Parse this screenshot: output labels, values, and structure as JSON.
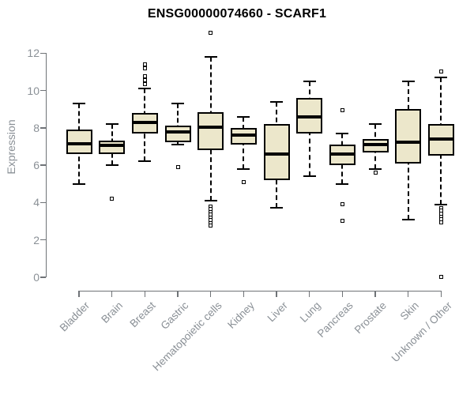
{
  "chart_data": {
    "type": "boxplot",
    "title": "ENSG00000074660 - SCARF1",
    "xlabel": "",
    "ylabel": "Expression",
    "ylim": [
      0,
      13.4
    ],
    "yticks": [
      0,
      2,
      4,
      6,
      8,
      10,
      12
    ],
    "grid": false,
    "legend": "none",
    "categories": [
      "Bladder",
      "Brain",
      "Breast",
      "Gastric",
      "Hematopoietic cells",
      "Kidney",
      "Liver",
      "Lung",
      "Pancreas",
      "Prostate",
      "Skin",
      "Unknown / Other"
    ],
    "boxes": [
      {
        "label": "Bladder",
        "low": 5.0,
        "q1": 6.6,
        "median": 7.15,
        "q3": 7.9,
        "high": 9.3,
        "outliers": []
      },
      {
        "label": "Brain",
        "low": 6.0,
        "q1": 6.6,
        "median": 7.05,
        "q3": 7.3,
        "high": 8.2,
        "outliers": [
          4.2
        ]
      },
      {
        "label": "Breast",
        "low": 6.2,
        "q1": 7.7,
        "median": 8.3,
        "q3": 8.8,
        "high": 10.1,
        "outliers": [
          11.4,
          11.2,
          10.75,
          10.55,
          10.35
        ]
      },
      {
        "label": "Gastric",
        "low": 7.1,
        "q1": 7.25,
        "median": 7.8,
        "q3": 8.1,
        "high": 9.3,
        "outliers": [
          5.9
        ]
      },
      {
        "label": "Hematopoietic cells",
        "low": 4.1,
        "q1": 6.8,
        "median": 8.05,
        "q3": 8.85,
        "high": 11.8,
        "outliers": [
          13.1,
          3.8,
          3.65,
          3.5,
          3.35,
          3.2,
          3.05,
          2.9,
          2.75
        ]
      },
      {
        "label": "Kidney",
        "low": 5.8,
        "q1": 7.1,
        "median": 7.6,
        "q3": 8.0,
        "high": 8.6,
        "outliers": [
          5.1
        ]
      },
      {
        "label": "Liver",
        "low": 3.7,
        "q1": 5.2,
        "median": 6.6,
        "q3": 8.2,
        "high": 9.4,
        "outliers": []
      },
      {
        "label": "Lung",
        "low": 5.4,
        "q1": 7.7,
        "median": 8.6,
        "q3": 9.6,
        "high": 10.5,
        "outliers": []
      },
      {
        "label": "Pancreas",
        "low": 5.0,
        "q1": 6.0,
        "median": 6.6,
        "q3": 7.1,
        "high": 7.7,
        "outliers": [
          8.95,
          3.9,
          3.0
        ]
      },
      {
        "label": "Prostate",
        "low": 5.8,
        "q1": 6.7,
        "median": 7.1,
        "q3": 7.4,
        "high": 8.2,
        "outliers": [
          5.6
        ]
      },
      {
        "label": "Skin",
        "low": 3.1,
        "q1": 6.1,
        "median": 7.25,
        "q3": 9.0,
        "high": 10.5,
        "outliers": []
      },
      {
        "label": "Unknown / Other",
        "low": 3.9,
        "q1": 6.5,
        "median": 7.4,
        "q3": 8.2,
        "high": 10.7,
        "outliers": [
          11.0,
          3.7,
          3.55,
          3.4,
          3.25,
          3.1,
          2.95,
          0.0
        ]
      }
    ],
    "colors": {
      "box_fill": "#ece7cb",
      "box_border": "#000000",
      "median": "#000000",
      "axis": "#6f7377",
      "tick_text": "#8a9096",
      "title_text": "#000000",
      "background": "#ffffff"
    }
  }
}
